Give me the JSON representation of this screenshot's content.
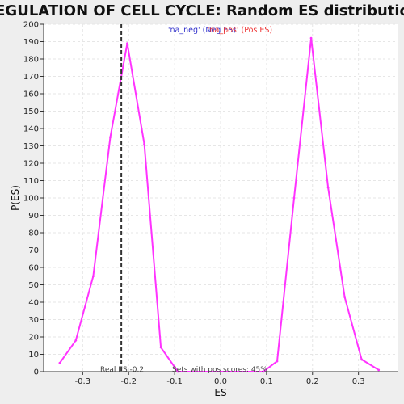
{
  "chart_data": {
    "type": "line",
    "title": "REGULATION OF CELL CYCLE: Random ES distribution",
    "xlabel": "ES",
    "ylabel": "P(ES)",
    "xlim": [
      -0.385,
      0.385
    ],
    "ylim": [
      0,
      200
    ],
    "x_ticks": [
      -0.3,
      -0.2,
      -0.1,
      0.0,
      0.1,
      0.2,
      0.3
    ],
    "x_tick_labels": [
      "-0.3",
      "-0.2",
      "-0.1",
      "0.0",
      "0.1",
      "0.2",
      "0.3"
    ],
    "y_ticks": [
      0,
      10,
      20,
      30,
      40,
      50,
      60,
      70,
      80,
      90,
      100,
      110,
      120,
      130,
      140,
      150,
      160,
      170,
      180,
      190,
      200
    ],
    "grid": true,
    "legend": [
      {
        "label": "'na_neg' (Neg ES)",
        "color": "#3333cc"
      },
      {
        "label": "'na_pos' (Pos ES)",
        "color": "#ee3333"
      }
    ],
    "series": [
      {
        "color": "#ff33ff",
        "points": [
          [
            -0.35,
            5
          ],
          [
            -0.315,
            18
          ],
          [
            -0.277,
            55
          ],
          [
            -0.24,
            135
          ],
          [
            -0.203,
            189
          ],
          [
            -0.166,
            131
          ],
          [
            -0.13,
            14
          ],
          [
            -0.093,
            0
          ],
          [
            0.093,
            0
          ],
          [
            0.123,
            6
          ],
          [
            0.16,
            100
          ],
          [
            0.197,
            192
          ],
          [
            0.234,
            106
          ],
          [
            0.27,
            43
          ],
          [
            0.307,
            7
          ],
          [
            0.344,
            1
          ]
        ]
      }
    ],
    "real_es": {
      "value": -0.216,
      "label": "Real ES -0.2"
    },
    "annotation": "Sets with pos scores: 45%"
  }
}
